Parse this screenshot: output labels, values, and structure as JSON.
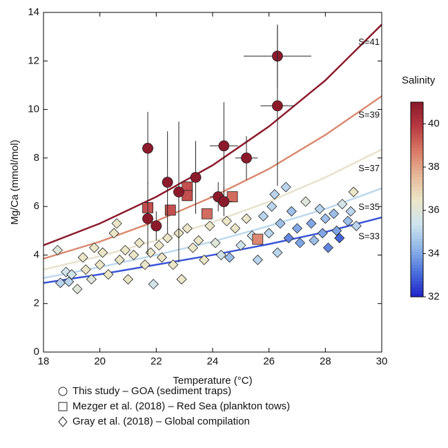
{
  "chart_data": {
    "type": "scatter",
    "xlabel": "Temperature (°C)",
    "ylabel": "Mg/Ca (mmol/mol)",
    "xlim": [
      18,
      30
    ],
    "ylim": [
      0,
      14
    ],
    "xticks": [
      18,
      20,
      22,
      24,
      26,
      28,
      30
    ],
    "yticks": [
      0,
      2,
      4,
      6,
      8,
      10,
      12,
      14
    ],
    "curves": [
      {
        "name": "S=41",
        "color": "#8b1a2b",
        "x": [
          18,
          20,
          22,
          24,
          26,
          28,
          30
        ],
        "values": [
          4.4,
          5.3,
          6.4,
          7.7,
          9.3,
          11.2,
          13.5
        ]
      },
      {
        "name": "S=39",
        "color": "#d98a70",
        "x": [
          18,
          20,
          22,
          24,
          26,
          28,
          30
        ],
        "values": [
          3.85,
          4.55,
          5.4,
          6.4,
          7.55,
          8.95,
          10.55
        ]
      },
      {
        "name": "S=37",
        "color": "#e8e2cc",
        "x": [
          18,
          20,
          22,
          24,
          26,
          28,
          30
        ],
        "values": [
          3.4,
          3.95,
          4.6,
          5.35,
          6.2,
          7.2,
          8.35
        ]
      },
      {
        "name": "S=35",
        "color": "#bcd9ee",
        "x": [
          18,
          20,
          22,
          24,
          26,
          28,
          30
        ],
        "values": [
          3.05,
          3.5,
          4.0,
          4.55,
          5.2,
          5.9,
          6.75
        ]
      },
      {
        "name": "S=33",
        "color": "#3a55d6",
        "x": [
          18,
          20,
          22,
          24,
          26,
          28,
          30
        ],
        "values": [
          2.85,
          3.2,
          3.6,
          4.0,
          4.45,
          4.95,
          5.55
        ]
      }
    ],
    "series": [
      {
        "name": "Gray et al. (2018) – Global compilation",
        "marker": "diamond",
        "x": [
          18.5,
          18.6,
          18.8,
          18.9,
          19.0,
          19.2,
          19.4,
          19.5,
          19.7,
          19.8,
          20.0,
          20.1,
          20.3,
          20.5,
          20.6,
          20.7,
          20.9,
          21.0,
          21.2,
          21.4,
          21.6,
          21.8,
          21.9,
          22.1,
          22.2,
          22.4,
          22.6,
          22.8,
          22.9,
          23.1,
          23.3,
          23.5,
          23.7,
          23.9,
          24.1,
          24.3,
          24.5,
          24.6,
          24.8,
          25.0,
          25.2,
          25.4,
          25.6,
          25.8,
          26.0,
          26.1,
          26.2,
          26.3,
          26.4,
          26.6,
          26.7,
          26.8,
          27.0,
          27.1,
          27.3,
          27.5,
          27.6,
          27.8,
          27.9,
          28.0,
          28.1,
          28.3,
          28.4,
          28.5,
          28.6,
          28.8,
          28.9,
          29.0,
          29.1
        ],
        "values": [
          4.2,
          2.85,
          3.3,
          2.9,
          3.2,
          2.6,
          3.9,
          3.4,
          3.0,
          4.3,
          3.6,
          4.1,
          3.2,
          4.9,
          5.3,
          3.8,
          4.2,
          3.0,
          4.0,
          4.5,
          3.6,
          4.1,
          2.8,
          4.4,
          3.9,
          4.7,
          3.6,
          4.9,
          3.0,
          5.1,
          4.3,
          4.6,
          3.8,
          5.2,
          4.5,
          4.0,
          5.4,
          3.9,
          5.1,
          4.4,
          5.5,
          4.8,
          3.8,
          5.6,
          4.9,
          6.0,
          6.5,
          4.1,
          5.3,
          6.8,
          4.7,
          5.8,
          5.1,
          4.5,
          6.2,
          5.3,
          4.6,
          5.9,
          4.9,
          5.5,
          4.3,
          5.7,
          5.0,
          4.7,
          6.1,
          5.4,
          5.8,
          6.6,
          5.2
        ],
        "salinity": [
          36,
          35,
          35.5,
          35,
          35.5,
          36,
          36.5,
          36.5,
          36,
          36.5,
          36.5,
          36.5,
          36.5,
          36.5,
          36.5,
          36.5,
          36.5,
          36.5,
          36.5,
          36.5,
          36.5,
          36.5,
          35.5,
          36.5,
          36.5,
          36.5,
          36.5,
          36.5,
          36.5,
          36.5,
          36.5,
          36.5,
          36.5,
          36.5,
          36,
          35.5,
          36.5,
          34.5,
          36.5,
          35.5,
          36.5,
          35.5,
          35,
          35,
          35,
          35,
          35,
          35,
          34.5,
          35,
          33.5,
          34.5,
          34,
          34,
          36,
          34,
          34.5,
          35,
          34,
          34.5,
          33.5,
          34.5,
          34,
          33,
          35.5,
          34.5,
          35,
          36.5,
          35
        ]
      },
      {
        "name": "Mezger et al. (2018) – Red Sea (plankton tows)",
        "marker": "square",
        "x": [
          21.7,
          22.5,
          23.1,
          23.1,
          23.8,
          24.7,
          25.6
        ],
        "values": [
          5.95,
          5.85,
          6.8,
          6.45,
          5.7,
          6.4,
          4.65
        ],
        "salinity": [
          39.5,
          39.5,
          39.5,
          39.5,
          39,
          39,
          38.5
        ]
      },
      {
        "name": "This study – GOA (sediment traps)",
        "marker": "circle",
        "x": [
          21.7,
          21.7,
          22.0,
          22.4,
          22.8,
          23.4,
          24.4,
          24.2,
          24.4,
          25.2,
          26.3,
          26.3
        ],
        "values": [
          8.4,
          5.5,
          5.2,
          7.0,
          6.6,
          7.2,
          8.5,
          6.4,
          6.2,
          8.0,
          12.2,
          10.15
        ],
        "xerr": [
          0.2,
          0.2,
          0.2,
          0.2,
          0.2,
          0.2,
          0.5,
          0.3,
          0.3,
          0.4,
          1.2,
          0.6
        ],
        "yerr": [
          1.5,
          1.5,
          0.6,
          2.1,
          2.9,
          1.5,
          1.8,
          0.6,
          0.6,
          0.9,
          1.3,
          3.3
        ],
        "salinity": [
          41,
          41,
          41,
          41,
          41,
          41,
          41,
          41,
          41,
          41,
          41,
          41
        ]
      }
    ],
    "colorbar": {
      "label": "Salinity",
      "lim": [
        32,
        41
      ],
      "ticks": [
        32,
        34,
        36,
        38,
        40
      ],
      "colors": [
        "#1f22c8",
        "#4a6fdc",
        "#8fb6e8",
        "#cfe4ef",
        "#ebe6c7",
        "#e6b898",
        "#d97a66",
        "#b83a42",
        "#8b1a2b"
      ]
    }
  }
}
